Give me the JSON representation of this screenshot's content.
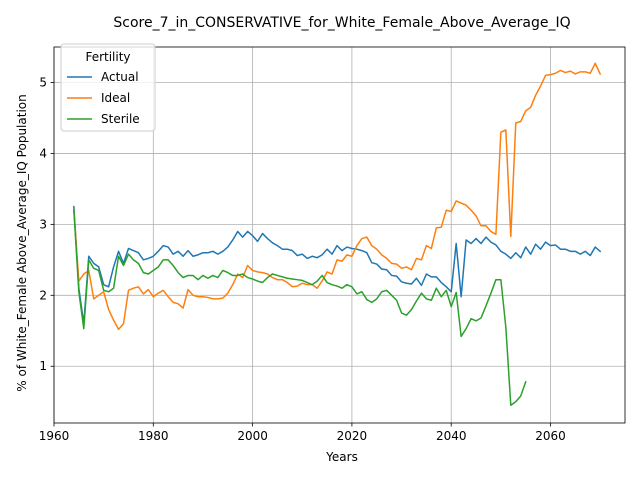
{
  "chart_data": {
    "type": "line",
    "title": "Score_7_in_CONSERVATIVE_for_White_Female_Above_Average_IQ",
    "xlabel": "Years",
    "ylabel": "% of White_Female Above_Average_IQ Population",
    "xlim": [
      1960,
      2075
    ],
    "ylim": [
      0.2,
      5.5
    ],
    "xticks": [
      1960,
      1980,
      2000,
      2020,
      2040,
      2060
    ],
    "yticks": [
      1,
      2,
      3,
      4,
      5
    ],
    "grid": true,
    "legend": {
      "title": "Fertility",
      "placement": "top-left"
    },
    "series": [
      {
        "name": "Actual",
        "color": "#1f77b4",
        "x": [
          1964,
          1965,
          1966,
          1967,
          1968,
          1969,
          1970,
          1971,
          1972,
          1973,
          1974,
          1975,
          1976,
          1977,
          1978,
          1979,
          1980,
          1981,
          1982,
          1983,
          1984,
          1985,
          1986,
          1987,
          1988,
          1989,
          1990,
          1991,
          1992,
          1993,
          1994,
          1995,
          1996,
          1997,
          1998,
          1999,
          2000,
          2001,
          2002,
          2003,
          2004,
          2005,
          2006,
          2007,
          2008,
          2009,
          2010,
          2011,
          2012,
          2013,
          2014,
          2015,
          2016,
          2017,
          2018,
          2019,
          2020,
          2021,
          2022,
          2023,
          2024,
          2025,
          2026,
          2027,
          2028,
          2029,
          2030,
          2031,
          2032,
          2033,
          2034,
          2035,
          2036,
          2037,
          2038,
          2039,
          2040,
          2041,
          2042,
          2043,
          2044,
          2045,
          2046,
          2047,
          2048,
          2049,
          2050,
          2051,
          2052,
          2053,
          2054,
          2055,
          2056,
          2057,
          2058,
          2059,
          2060,
          2061,
          2062,
          2063,
          2064,
          2065,
          2066,
          2067,
          2068,
          2069,
          2070
        ],
        "y": [
          3.25,
          2.1,
          1.6,
          2.55,
          2.45,
          2.4,
          2.15,
          2.12,
          2.4,
          2.62,
          2.45,
          2.66,
          2.63,
          2.6,
          2.5,
          2.52,
          2.55,
          2.62,
          2.7,
          2.68,
          2.58,
          2.62,
          2.55,
          2.63,
          2.55,
          2.57,
          2.6,
          2.6,
          2.62,
          2.58,
          2.62,
          2.68,
          2.78,
          2.9,
          2.82,
          2.9,
          2.84,
          2.76,
          2.87,
          2.8,
          2.74,
          2.7,
          2.65,
          2.65,
          2.63,
          2.56,
          2.58,
          2.52,
          2.55,
          2.53,
          2.57,
          2.65,
          2.58,
          2.7,
          2.63,
          2.68,
          2.66,
          2.65,
          2.63,
          2.6,
          2.46,
          2.44,
          2.37,
          2.36,
          2.28,
          2.27,
          2.19,
          2.17,
          2.16,
          2.24,
          2.14,
          2.3,
          2.26,
          2.26,
          2.18,
          2.12,
          2.05,
          2.73,
          1.98,
          2.78,
          2.73,
          2.8,
          2.73,
          2.82,
          2.75,
          2.71,
          2.62,
          2.58,
          2.52,
          2.6,
          2.53,
          2.68,
          2.58,
          2.72,
          2.65,
          2.75,
          2.7,
          2.71,
          2.65,
          2.65,
          2.62,
          2.62,
          2.58,
          2.62,
          2.56,
          2.68,
          2.62
        ]
      },
      {
        "name": "Ideal",
        "color": "#ff7f0e",
        "x": [
          1964,
          1965,
          1966,
          1967,
          1968,
          1969,
          1970,
          1971,
          1972,
          1973,
          1974,
          1975,
          1976,
          1977,
          1978,
          1979,
          1980,
          1981,
          1982,
          1983,
          1984,
          1985,
          1986,
          1987,
          1988,
          1989,
          1990,
          1991,
          1992,
          1993,
          1994,
          1995,
          1996,
          1997,
          1998,
          1999,
          2000,
          2001,
          2002,
          2003,
          2004,
          2005,
          2006,
          2007,
          2008,
          2009,
          2010,
          2011,
          2012,
          2013,
          2014,
          2015,
          2016,
          2017,
          2018,
          2019,
          2020,
          2021,
          2022,
          2023,
          2024,
          2025,
          2026,
          2027,
          2028,
          2029,
          2030,
          2031,
          2032,
          2033,
          2034,
          2035,
          2036,
          2037,
          2038,
          2039,
          2040,
          2041,
          2042,
          2043,
          2044,
          2045,
          2046,
          2047,
          2048,
          2049,
          2050,
          2051,
          2052,
          2053,
          2054,
          2055,
          2056,
          2057,
          2058,
          2059,
          2060,
          2061,
          2062,
          2063,
          2064,
          2065,
          2066,
          2067,
          2068,
          2069,
          2070
        ],
        "y": [
          3.2,
          2.2,
          2.3,
          2.35,
          1.95,
          2.0,
          2.05,
          1.8,
          1.65,
          1.52,
          1.6,
          2.07,
          2.1,
          2.12,
          2.02,
          2.08,
          1.98,
          2.03,
          2.07,
          1.98,
          1.9,
          1.88,
          1.82,
          2.08,
          2.0,
          1.98,
          1.98,
          1.97,
          1.95,
          1.95,
          1.96,
          2.03,
          2.15,
          2.3,
          2.25,
          2.42,
          2.35,
          2.33,
          2.32,
          2.3,
          2.25,
          2.22,
          2.22,
          2.18,
          2.12,
          2.13,
          2.17,
          2.15,
          2.15,
          2.1,
          2.2,
          2.33,
          2.3,
          2.5,
          2.48,
          2.57,
          2.55,
          2.7,
          2.8,
          2.82,
          2.7,
          2.65,
          2.57,
          2.52,
          2.45,
          2.44,
          2.38,
          2.4,
          2.36,
          2.52,
          2.5,
          2.7,
          2.66,
          2.95,
          2.96,
          3.2,
          3.18,
          3.33,
          3.3,
          3.27,
          3.2,
          3.12,
          2.98,
          2.98,
          2.9,
          2.86,
          4.3,
          4.33,
          2.83,
          4.43,
          4.45,
          4.6,
          4.65,
          4.82,
          4.95,
          5.1,
          5.11,
          5.13,
          5.17,
          5.14,
          5.16,
          5.12,
          5.15,
          5.15,
          5.13,
          5.27,
          5.12
        ]
      },
      {
        "name": "Sterile",
        "color": "#2ca02c",
        "x": [
          1964,
          1965,
          1966,
          1967,
          1968,
          1969,
          1970,
          1971,
          1972,
          1973,
          1974,
          1975,
          1976,
          1977,
          1978,
          1979,
          1980,
          1981,
          1982,
          1983,
          1984,
          1985,
          1986,
          1987,
          1988,
          1989,
          1990,
          1991,
          1992,
          1993,
          1994,
          1995,
          1996,
          1997,
          1998,
          1999,
          2000,
          2001,
          2002,
          2003,
          2004,
          2005,
          2006,
          2007,
          2008,
          2009,
          2010,
          2011,
          2012,
          2013,
          2014,
          2015,
          2016,
          2017,
          2018,
          2019,
          2020,
          2021,
          2022,
          2023,
          2024,
          2025,
          2026,
          2027,
          2028,
          2029,
          2030,
          2031,
          2032,
          2033,
          2034,
          2035,
          2036,
          2037,
          2038,
          2039,
          2040,
          2041,
          2042,
          2043,
          2044,
          2045,
          2046,
          2047,
          2048,
          2049,
          2050,
          2051,
          2052,
          2053,
          2054,
          2055,
          2056
        ],
        "y": [
          3.2,
          2.05,
          1.53,
          2.5,
          2.38,
          2.35,
          2.07,
          2.05,
          2.1,
          2.55,
          2.42,
          2.58,
          2.5,
          2.45,
          2.32,
          2.3,
          2.35,
          2.4,
          2.5,
          2.5,
          2.42,
          2.32,
          2.25,
          2.28,
          2.28,
          2.22,
          2.28,
          2.24,
          2.28,
          2.25,
          2.35,
          2.32,
          2.28,
          2.28,
          2.3,
          2.25,
          2.23,
          2.2,
          2.18,
          2.25,
          2.3,
          2.28,
          2.26,
          2.24,
          2.23,
          2.22,
          2.21,
          2.18,
          2.15,
          2.2,
          2.28,
          2.18,
          2.15,
          2.13,
          2.1,
          2.15,
          2.12,
          2.02,
          2.05,
          1.94,
          1.9,
          1.95,
          2.05,
          2.07,
          2.0,
          1.93,
          1.75,
          1.72,
          1.8,
          1.92,
          2.03,
          1.95,
          1.93,
          2.1,
          1.98,
          2.07,
          1.84,
          2.04,
          1.42,
          1.53,
          1.67,
          1.64,
          1.68,
          1.85,
          2.03,
          2.22,
          2.22,
          1.55,
          0.45,
          0.5,
          0.58,
          0.78,
          null
        ]
      }
    ]
  }
}
